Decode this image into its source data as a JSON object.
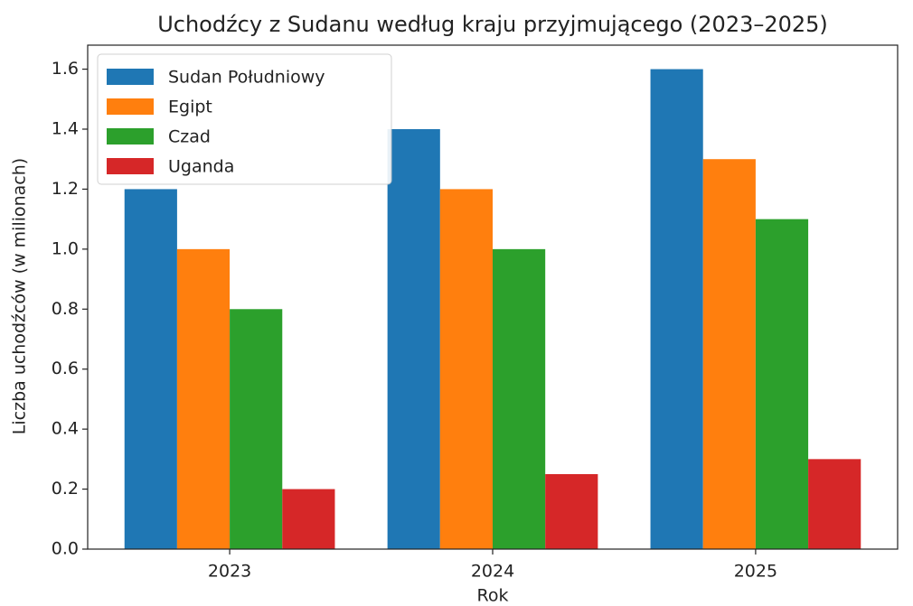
{
  "chart_data": {
    "type": "grouped_bar",
    "title": "Uchodźcy z Sudanu według kraju przyjmującego (2023–2025)",
    "x_label": "Rok",
    "y_label": "Liczba uchodźców (w milionach)",
    "categories": [
      "2023",
      "2024",
      "2025"
    ],
    "series": [
      {
        "name": "Sudan Południowy",
        "color": "#1f77b4",
        "values": [
          1.2,
          1.4,
          1.6
        ]
      },
      {
        "name": "Egipt",
        "color": "#ff7f0e",
        "values": [
          1.0,
          1.2,
          1.3
        ]
      },
      {
        "name": "Czad",
        "color": "#2ca02c",
        "values": [
          0.8,
          1.0,
          1.1
        ]
      },
      {
        "name": "Uganda",
        "color": "#d62728",
        "values": [
          0.2,
          0.25,
          0.3
        ]
      }
    ],
    "ylim": [
      0,
      1.68
    ],
    "yticks": [
      {
        "value": 0,
        "label": "0.0"
      },
      0.2,
      0.4,
      0.6,
      0.8,
      {
        "value": 1,
        "label": "1.0"
      },
      1.2,
      1.4,
      1.6
    ],
    "legend": "upper left",
    "grid": false
  }
}
